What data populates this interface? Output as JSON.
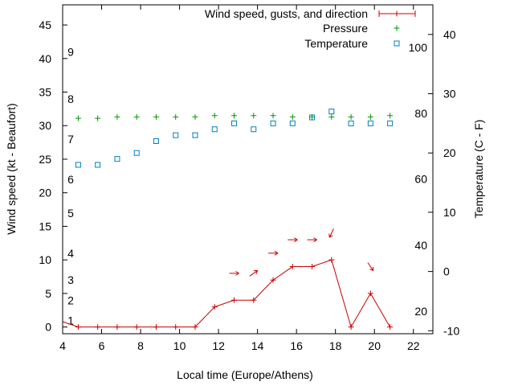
{
  "chart_data": {
    "type": "line",
    "xlabel": "Local time (Europe/Athens)",
    "ylabel": "Wind speed (kt - Beaufort)",
    "y2label": "Temperature (C - F)",
    "xlim": [
      4,
      23
    ],
    "ylim": [
      -1,
      48
    ],
    "y2lim": [
      -10.5,
      45
    ],
    "xticks": [
      4,
      6,
      8,
      10,
      12,
      14,
      16,
      18,
      20,
      22
    ],
    "yticks": [
      0,
      5,
      10,
      15,
      20,
      25,
      30,
      35,
      40,
      45
    ],
    "y2ticks": [
      -10,
      0,
      10,
      20,
      30,
      40
    ],
    "beaufort_labels": [
      {
        "text": "1",
        "kt": 1
      },
      {
        "text": "2",
        "kt": 4
      },
      {
        "text": "3",
        "kt": 7
      },
      {
        "text": "4",
        "kt": 11
      },
      {
        "text": "5",
        "kt": 17
      },
      {
        "text": "6",
        "kt": 22
      },
      {
        "text": "7",
        "kt": 28
      },
      {
        "text": "8",
        "kt": 34
      },
      {
        "text": "9",
        "kt": 41
      }
    ],
    "fahrenheit_labels": [
      {
        "text": "20",
        "celsius": -6.7
      },
      {
        "text": "40",
        "celsius": 4.4
      },
      {
        "text": "60",
        "celsius": 15.6
      },
      {
        "text": "80",
        "celsius": 26.7
      },
      {
        "text": "100",
        "celsius": 37.8
      }
    ],
    "legend_placement": "top-right",
    "series": [
      {
        "name": "Wind speed, gusts, and direction",
        "color": "#cc0000",
        "x": [
          4,
          4.8,
          5.8,
          6.8,
          7.8,
          8.8,
          9.8,
          10.8,
          11.8,
          12.8,
          13.8,
          14.8,
          15.8,
          16.8,
          17.8,
          18.8,
          19.8,
          20.8
        ],
        "y": [
          0.8,
          0,
          0,
          0,
          0,
          0,
          0,
          0,
          3,
          4,
          4,
          7,
          9,
          9,
          10,
          0,
          5,
          0
        ]
      },
      {
        "name": "Pressure",
        "color": "#009900",
        "x": [
          4.8,
          5.8,
          6.8,
          7.8,
          8.8,
          9.8,
          10.8,
          11.8,
          12.8,
          13.8,
          14.8,
          15.8,
          16.8,
          17.8,
          18.8,
          19.8,
          20.8
        ],
        "y": [
          31.1,
          31.1,
          31.3,
          31.3,
          31.3,
          31.3,
          31.3,
          31.5,
          31.5,
          31.5,
          31.5,
          31.3,
          31.3,
          31.3,
          31.3,
          31.3,
          31.5
        ]
      },
      {
        "name": "Temperature",
        "color": "#0080c0",
        "x": [
          4.8,
          5.8,
          6.8,
          7.8,
          8.8,
          9.8,
          10.8,
          11.8,
          12.8,
          13.8,
          14.8,
          15.8,
          16.8,
          17.8,
          18.8,
          19.8,
          20.8
        ],
        "y": [
          18,
          18,
          19,
          20,
          22,
          23,
          23,
          24,
          25,
          24,
          25,
          25,
          26,
          27,
          25,
          25,
          25
        ]
      }
    ],
    "wind_direction_arrows": [
      {
        "x": 12.8,
        "y": 8,
        "angle_deg": 0
      },
      {
        "x": 13.8,
        "y": 8,
        "angle_deg": -35
      },
      {
        "x": 14.8,
        "y": 11,
        "angle_deg": 0
      },
      {
        "x": 15.8,
        "y": 13,
        "angle_deg": 0
      },
      {
        "x": 16.8,
        "y": 13,
        "angle_deg": 0
      },
      {
        "x": 17.8,
        "y": 14,
        "angle_deg": 115
      },
      {
        "x": 19.8,
        "y": 9,
        "angle_deg": 55
      }
    ]
  }
}
